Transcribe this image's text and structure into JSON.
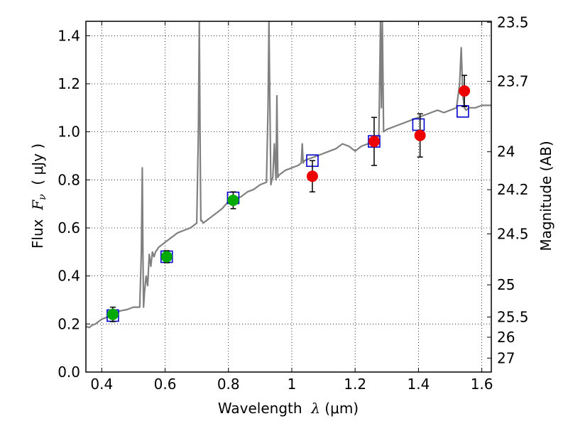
{
  "chart_data": {
    "type": "scatter",
    "xlabel": "Wavelength  λ (μm)",
    "ylabel": "Flux  Fν  ( μJy )",
    "ylabel_parts": {
      "prefix": "Flux  ",
      "math": "F",
      "sub": "ν",
      "suffix": "  ( μJy )"
    },
    "xlabel_parts": {
      "prefix": "Wavelength  ",
      "math": "λ",
      "suffix": " (μm)"
    },
    "y2label": "Magnitude (AB)",
    "xlim": [
      0.35,
      1.63
    ],
    "ylim": [
      0.0,
      1.46
    ],
    "grid": true,
    "x_ticks": [
      {
        "value": 0.4,
        "label": "0.4"
      },
      {
        "value": 0.6,
        "label": "0.6"
      },
      {
        "value": 0.8,
        "label": "0.8"
      },
      {
        "value": 1.0,
        "label": "1"
      },
      {
        "value": 1.2,
        "label": "1.2"
      },
      {
        "value": 1.4,
        "label": "1.4"
      },
      {
        "value": 1.6,
        "label": "1.6"
      }
    ],
    "y_ticks": [
      {
        "value": 0.0,
        "label": "0.0"
      },
      {
        "value": 0.2,
        "label": "0.2"
      },
      {
        "value": 0.4,
        "label": "0.4"
      },
      {
        "value": 0.6,
        "label": "0.6"
      },
      {
        "value": 0.8,
        "label": "0.8"
      },
      {
        "value": 1.0,
        "label": "1.0"
      },
      {
        "value": 1.2,
        "label": "1.2"
      },
      {
        "value": 1.4,
        "label": "1.4"
      }
    ],
    "mag_ticks": [
      {
        "flux": 1.456,
        "label": "23.5"
      },
      {
        "flux": 1.21,
        "label": "23.7"
      },
      {
        "flux": 0.917,
        "label": "24"
      },
      {
        "flux": 0.759,
        "label": "24.2"
      },
      {
        "flux": 0.575,
        "label": "24.5"
      },
      {
        "flux": 0.363,
        "label": "25"
      },
      {
        "flux": 0.229,
        "label": "25.5"
      },
      {
        "flux": 0.145,
        "label": "26"
      },
      {
        "flux": 0.058,
        "label": "27"
      }
    ],
    "series": [
      {
        "name": "model_sed",
        "kind": "line",
        "color": "#808080",
        "x": [
          0.35,
          0.36,
          0.37,
          0.38,
          0.39,
          0.4,
          0.42,
          0.44,
          0.46,
          0.48,
          0.5,
          0.52,
          0.525,
          0.528,
          0.53,
          0.532,
          0.535,
          0.54,
          0.545,
          0.55,
          0.555,
          0.56,
          0.565,
          0.57,
          0.58,
          0.59,
          0.6,
          0.62,
          0.64,
          0.66,
          0.68,
          0.7,
          0.705,
          0.708,
          0.711,
          0.713,
          0.716,
          0.72,
          0.74,
          0.76,
          0.78,
          0.8,
          0.82,
          0.84,
          0.86,
          0.88,
          0.9,
          0.92,
          0.925,
          0.928,
          0.931,
          0.934,
          0.937,
          0.94,
          0.945,
          0.95,
          0.953,
          0.956,
          0.96,
          0.98,
          1.0,
          1.02,
          1.03,
          1.033,
          1.036,
          1.04,
          1.06,
          1.08,
          1.1,
          1.12,
          1.14,
          1.16,
          1.18,
          1.2,
          1.22,
          1.24,
          1.26,
          1.275,
          1.28,
          1.283,
          1.286,
          1.29,
          1.3,
          1.32,
          1.34,
          1.36,
          1.38,
          1.4,
          1.42,
          1.44,
          1.46,
          1.48,
          1.5,
          1.52,
          1.53,
          1.535,
          1.54,
          1.545,
          1.55,
          1.56,
          1.58,
          1.6,
          1.63
        ],
        "y": [
          0.19,
          0.185,
          0.195,
          0.2,
          0.21,
          0.22,
          0.23,
          0.245,
          0.255,
          0.26,
          0.27,
          0.27,
          0.5,
          0.85,
          0.5,
          0.27,
          0.33,
          0.4,
          0.36,
          0.49,
          0.44,
          0.5,
          0.48,
          0.5,
          0.52,
          0.53,
          0.54,
          0.56,
          0.58,
          0.59,
          0.6,
          0.62,
          1.0,
          1.46,
          0.9,
          0.63,
          0.63,
          0.62,
          0.64,
          0.66,
          0.68,
          0.71,
          0.72,
          0.73,
          0.75,
          0.76,
          0.78,
          0.79,
          1.1,
          1.46,
          1.1,
          0.78,
          0.8,
          0.81,
          0.95,
          0.8,
          1.15,
          0.81,
          0.82,
          0.84,
          0.85,
          0.86,
          0.87,
          0.95,
          0.87,
          0.88,
          0.89,
          0.9,
          0.91,
          0.92,
          0.93,
          0.95,
          0.94,
          0.92,
          0.94,
          0.95,
          0.97,
          0.98,
          1.46,
          1.1,
          1.46,
          1.0,
          1.01,
          1.02,
          1.03,
          1.04,
          1.05,
          1.06,
          1.07,
          1.08,
          1.09,
          1.08,
          1.09,
          1.1,
          1.2,
          1.35,
          1.15,
          1.1,
          1.09,
          1.1,
          1.1,
          1.11,
          1.11
        ]
      },
      {
        "name": "model_bandpass",
        "kind": "open-square",
        "color": "#0000cc",
        "x": [
          0.435,
          0.605,
          0.815,
          1.065,
          1.26,
          1.4,
          1.54
        ],
        "y": [
          0.235,
          0.48,
          0.725,
          0.88,
          0.96,
          1.03,
          1.085
        ]
      },
      {
        "name": "ground_photometry",
        "kind": "filled-circle",
        "color": "#00aa00",
        "x": [
          0.435,
          0.605,
          0.815
        ],
        "y": [
          0.24,
          0.48,
          0.715
        ],
        "err": [
          0.03,
          0.025,
          0.035
        ]
      },
      {
        "name": "hst_photometry",
        "kind": "filled-circle",
        "color": "#ee0000",
        "x": [
          1.065,
          1.26,
          1.405,
          1.545
        ],
        "y": [
          0.815,
          0.96,
          0.985,
          1.17
        ],
        "err": [
          0.065,
          0.1,
          0.09,
          0.065
        ]
      }
    ]
  }
}
